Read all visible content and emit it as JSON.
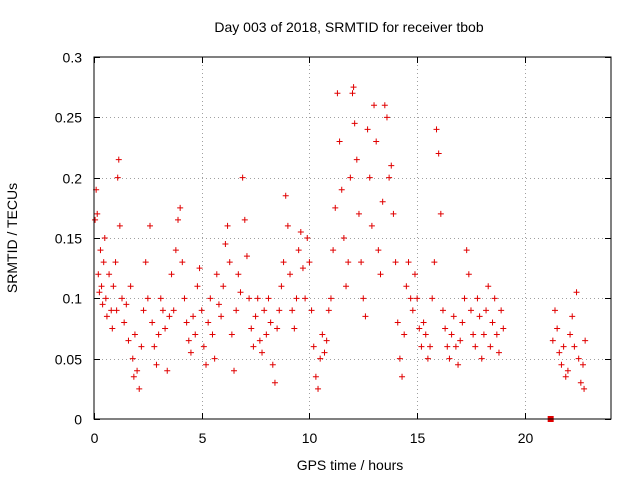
{
  "chart_data": {
    "type": "scatter",
    "title": "Day 003 of 2018, SRMTID for receiver tbob",
    "xlabel": "GPS time / hours",
    "ylabel": "SRMTID / TECUs",
    "xlim": [
      0,
      24
    ],
    "ylim": [
      0,
      0.3
    ],
    "x_ticks": [
      0,
      5,
      10,
      15,
      20
    ],
    "x_tick_labels": [
      "0",
      "5",
      "10",
      "15",
      "20"
    ],
    "y_ticks": [
      0,
      0.05,
      0.1,
      0.15,
      0.2,
      0.25,
      0.3
    ],
    "y_tick_labels": [
      "0",
      "0.05",
      "0.1",
      "0.15",
      "0.2",
      "0.25",
      "0.3"
    ],
    "grid": true,
    "marker": "plus",
    "color": "#e00000",
    "series": [
      {
        "name": "SRMTID",
        "points": [
          [
            0.05,
            0.165
          ],
          [
            0.1,
            0.19
          ],
          [
            0.15,
            0.17
          ],
          [
            0.2,
            0.12
          ],
          [
            0.25,
            0.105
          ],
          [
            0.3,
            0.14
          ],
          [
            0.35,
            0.11
          ],
          [
            0.4,
            0.095
          ],
          [
            0.45,
            0.13
          ],
          [
            0.5,
            0.15
          ],
          [
            0.55,
            0.1
          ],
          [
            0.6,
            0.085
          ],
          [
            0.7,
            0.12
          ],
          [
            0.8,
            0.09
          ],
          [
            0.85,
            0.075
          ],
          [
            0.9,
            0.11
          ],
          [
            1.0,
            0.13
          ],
          [
            1.05,
            0.09
          ],
          [
            1.1,
            0.2
          ],
          [
            1.15,
            0.215
          ],
          [
            1.2,
            0.16
          ],
          [
            1.3,
            0.1
          ],
          [
            1.4,
            0.08
          ],
          [
            1.5,
            0.095
          ],
          [
            1.6,
            0.065
          ],
          [
            1.7,
            0.11
          ],
          [
            1.8,
            0.05
          ],
          [
            1.85,
            0.035
          ],
          [
            1.9,
            0.07
          ],
          [
            2.0,
            0.04
          ],
          [
            2.1,
            0.025
          ],
          [
            2.2,
            0.06
          ],
          [
            2.3,
            0.09
          ],
          [
            2.4,
            0.13
          ],
          [
            2.5,
            0.1
          ],
          [
            2.6,
            0.16
          ],
          [
            2.7,
            0.08
          ],
          [
            2.8,
            0.06
          ],
          [
            2.9,
            0.045
          ],
          [
            3.0,
            0.07
          ],
          [
            3.1,
            0.1
          ],
          [
            3.2,
            0.09
          ],
          [
            3.3,
            0.075
          ],
          [
            3.4,
            0.04
          ],
          [
            3.5,
            0.085
          ],
          [
            3.6,
            0.12
          ],
          [
            3.7,
            0.09
          ],
          [
            3.8,
            0.14
          ],
          [
            3.9,
            0.165
          ],
          [
            4.0,
            0.175
          ],
          [
            4.1,
            0.13
          ],
          [
            4.2,
            0.1
          ],
          [
            4.3,
            0.08
          ],
          [
            4.4,
            0.065
          ],
          [
            4.5,
            0.055
          ],
          [
            4.6,
            0.085
          ],
          [
            4.7,
            0.07
          ],
          [
            4.8,
            0.11
          ],
          [
            4.9,
            0.125
          ],
          [
            5.0,
            0.09
          ],
          [
            5.1,
            0.06
          ],
          [
            5.2,
            0.045
          ],
          [
            5.3,
            0.08
          ],
          [
            5.4,
            0.1
          ],
          [
            5.5,
            0.07
          ],
          [
            5.6,
            0.05
          ],
          [
            5.7,
            0.12
          ],
          [
            5.8,
            0.095
          ],
          [
            5.9,
            0.085
          ],
          [
            6.0,
            0.11
          ],
          [
            6.1,
            0.145
          ],
          [
            6.2,
            0.16
          ],
          [
            6.3,
            0.13
          ],
          [
            6.4,
            0.07
          ],
          [
            6.5,
            0.04
          ],
          [
            6.6,
            0.09
          ],
          [
            6.7,
            0.12
          ],
          [
            6.8,
            0.105
          ],
          [
            6.9,
            0.2
          ],
          [
            7.0,
            0.165
          ],
          [
            7.1,
            0.135
          ],
          [
            7.2,
            0.1
          ],
          [
            7.3,
            0.075
          ],
          [
            7.4,
            0.06
          ],
          [
            7.5,
            0.085
          ],
          [
            7.6,
            0.1
          ],
          [
            7.7,
            0.065
          ],
          [
            7.8,
            0.055
          ],
          [
            7.9,
            0.09
          ],
          [
            8.0,
            0.07
          ],
          [
            8.1,
            0.1
          ],
          [
            8.2,
            0.08
          ],
          [
            8.3,
            0.045
          ],
          [
            8.4,
            0.03
          ],
          [
            8.5,
            0.075
          ],
          [
            8.6,
            0.09
          ],
          [
            8.7,
            0.11
          ],
          [
            8.8,
            0.13
          ],
          [
            8.9,
            0.185
          ],
          [
            9.0,
            0.16
          ],
          [
            9.1,
            0.12
          ],
          [
            9.2,
            0.09
          ],
          [
            9.3,
            0.075
          ],
          [
            9.4,
            0.1
          ],
          [
            9.5,
            0.14
          ],
          [
            9.6,
            0.155
          ],
          [
            9.7,
            0.125
          ],
          [
            9.8,
            0.1
          ],
          [
            9.9,
            0.15
          ],
          [
            10.0,
            0.13
          ],
          [
            10.1,
            0.09
          ],
          [
            10.2,
            0.06
          ],
          [
            10.3,
            0.035
          ],
          [
            10.4,
            0.025
          ],
          [
            10.5,
            0.05
          ],
          [
            10.6,
            0.07
          ],
          [
            10.7,
            0.055
          ],
          [
            10.8,
            0.065
          ],
          [
            10.9,
            0.09
          ],
          [
            11.0,
            0.1
          ],
          [
            11.1,
            0.14
          ],
          [
            11.2,
            0.175
          ],
          [
            11.3,
            0.27
          ],
          [
            11.4,
            0.23
          ],
          [
            11.5,
            0.19
          ],
          [
            11.6,
            0.15
          ],
          [
            11.7,
            0.11
          ],
          [
            11.8,
            0.13
          ],
          [
            11.9,
            0.2
          ],
          [
            12.0,
            0.27
          ],
          [
            12.05,
            0.275
          ],
          [
            12.1,
            0.245
          ],
          [
            12.2,
            0.215
          ],
          [
            12.3,
            0.17
          ],
          [
            12.4,
            0.13
          ],
          [
            12.5,
            0.1
          ],
          [
            12.6,
            0.085
          ],
          [
            12.7,
            0.24
          ],
          [
            12.8,
            0.2
          ],
          [
            12.9,
            0.16
          ],
          [
            13.0,
            0.26
          ],
          [
            13.1,
            0.23
          ],
          [
            13.2,
            0.14
          ],
          [
            13.3,
            0.12
          ],
          [
            13.4,
            0.18
          ],
          [
            13.5,
            0.26
          ],
          [
            13.6,
            0.25
          ],
          [
            13.7,
            0.2
          ],
          [
            13.8,
            0.21
          ],
          [
            13.9,
            0.17
          ],
          [
            14.0,
            0.13
          ],
          [
            14.1,
            0.08
          ],
          [
            14.2,
            0.05
          ],
          [
            14.3,
            0.035
          ],
          [
            14.4,
            0.07
          ],
          [
            14.5,
            0.11
          ],
          [
            14.6,
            0.13
          ],
          [
            14.7,
            0.1
          ],
          [
            14.8,
            0.09
          ],
          [
            14.9,
            0.12
          ],
          [
            15.0,
            0.1
          ],
          [
            15.1,
            0.075
          ],
          [
            15.2,
            0.06
          ],
          [
            15.3,
            0.08
          ],
          [
            15.4,
            0.07
          ],
          [
            15.5,
            0.05
          ],
          [
            15.6,
            0.06
          ],
          [
            15.7,
            0.1
          ],
          [
            15.8,
            0.13
          ],
          [
            15.9,
            0.24
          ],
          [
            16.0,
            0.22
          ],
          [
            16.1,
            0.17
          ],
          [
            16.2,
            0.09
          ],
          [
            16.3,
            0.075
          ],
          [
            16.4,
            0.06
          ],
          [
            16.5,
            0.05
          ],
          [
            16.6,
            0.07
          ],
          [
            16.7,
            0.085
          ],
          [
            16.8,
            0.06
          ],
          [
            16.9,
            0.045
          ],
          [
            17.0,
            0.065
          ],
          [
            17.1,
            0.08
          ],
          [
            17.2,
            0.1
          ],
          [
            17.3,
            0.14
          ],
          [
            17.4,
            0.12
          ],
          [
            17.5,
            0.09
          ],
          [
            17.6,
            0.07
          ],
          [
            17.7,
            0.06
          ],
          [
            17.8,
            0.1
          ],
          [
            17.9,
            0.085
          ],
          [
            18.0,
            0.05
          ],
          [
            18.1,
            0.07
          ],
          [
            18.2,
            0.09
          ],
          [
            18.3,
            0.11
          ],
          [
            18.4,
            0.06
          ],
          [
            18.5,
            0.08
          ],
          [
            18.6,
            0.1
          ],
          [
            18.7,
            0.07
          ],
          [
            18.8,
            0.055
          ],
          [
            18.9,
            0.09
          ],
          [
            19.0,
            0.075
          ],
          [
            21.3,
            0.065
          ],
          [
            21.4,
            0.09
          ],
          [
            21.5,
            0.075
          ],
          [
            21.6,
            0.055
          ],
          [
            21.7,
            0.045
          ],
          [
            21.8,
            0.06
          ],
          [
            21.9,
            0.035
          ],
          [
            22.0,
            0.04
          ],
          [
            22.1,
            0.07
          ],
          [
            22.2,
            0.085
          ],
          [
            22.3,
            0.06
          ],
          [
            22.4,
            0.105
          ],
          [
            22.5,
            0.05
          ],
          [
            22.6,
            0.03
          ],
          [
            22.7,
            0.045
          ],
          [
            22.75,
            0.025
          ],
          [
            22.8,
            0.065
          ]
        ]
      }
    ],
    "annotations": [
      {
        "type": "square-marker",
        "x": 21.2,
        "y": 0.0
      }
    ]
  }
}
